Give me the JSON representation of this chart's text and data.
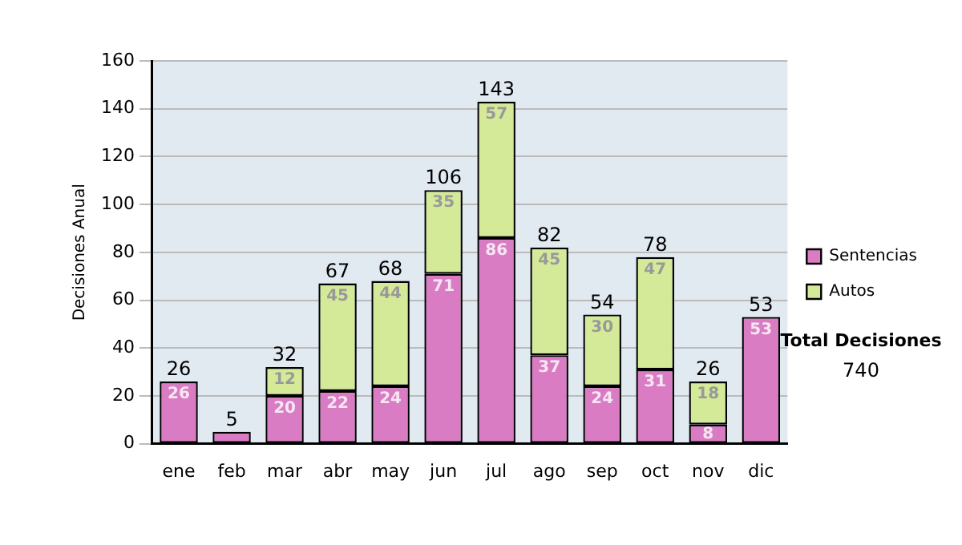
{
  "chart_data": {
    "type": "bar",
    "stacked": true,
    "ylabel": "Decisiones Anual",
    "categories": [
      "ene",
      "feb",
      "mar",
      "abr",
      "may",
      "jun",
      "jul",
      "ago",
      "sep",
      "oct",
      "nov",
      "dic"
    ],
    "series": [
      {
        "name": "Sentencias",
        "color": "#da7cc3",
        "values": [
          26,
          5,
          20,
          22,
          24,
          71,
          86,
          37,
          24,
          31,
          8,
          53
        ],
        "value_labels": [
          "26",
          null,
          "20",
          "22",
          "24",
          "71",
          "86",
          "37",
          "24",
          "31",
          "8",
          "53"
        ]
      },
      {
        "name": "Autos",
        "color": "#d5ea98",
        "values": [
          null,
          null,
          12,
          45,
          44,
          35,
          57,
          45,
          30,
          47,
          18,
          null
        ],
        "value_labels": [
          null,
          null,
          "12",
          "45",
          "44",
          "35",
          "57",
          "45",
          "30",
          "47",
          "18",
          null
        ]
      }
    ],
    "totals": [
      "26",
      "5",
      "32",
      "67",
      "68",
      "106",
      "143",
      "82",
      "54",
      "78",
      "26",
      "53"
    ],
    "ylim": [
      0,
      160
    ],
    "yticks": [
      0,
      20,
      40,
      60,
      80,
      100,
      120,
      140,
      160
    ],
    "grid": "y",
    "legend": "right",
    "annotations": [
      "Total Decisiones",
      "740"
    ]
  }
}
